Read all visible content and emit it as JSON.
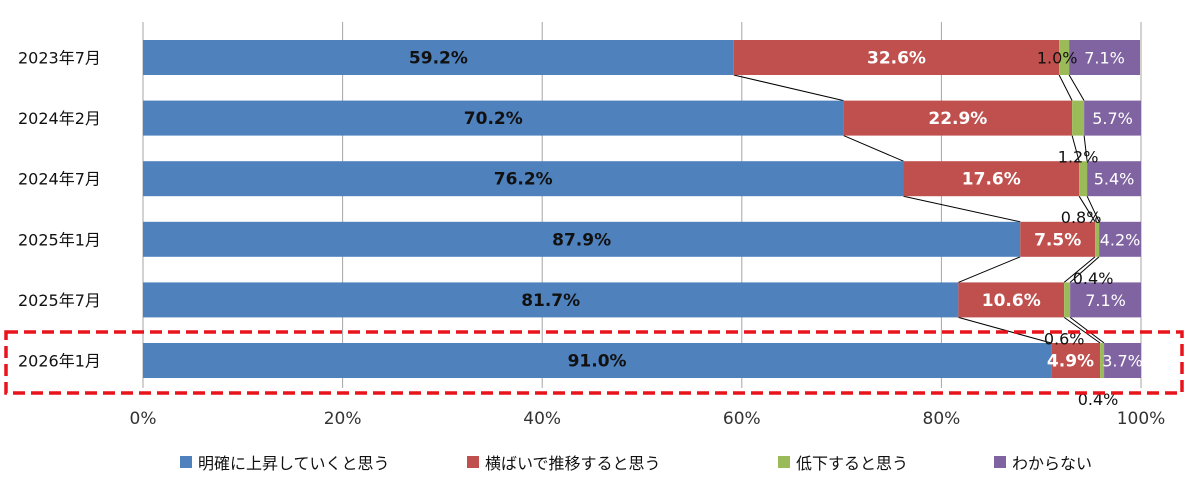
{
  "chart_data": {
    "type": "bar",
    "orientation": "horizontal",
    "stacked": true,
    "normalized": true,
    "categories": [
      "2023年7月",
      "2024年2月",
      "2024年7月",
      "2025年1月",
      "2025年7月",
      "2026年1月"
    ],
    "series": [
      {
        "name": "明確に上昇していくと思う",
        "color": "#4F81BD",
        "values": [
          59.2,
          70.2,
          76.2,
          87.9,
          81.7,
          91.0
        ]
      },
      {
        "name": "横ばいで推移すると思う",
        "color": "#C0504D",
        "values": [
          32.6,
          22.9,
          17.6,
          7.5,
          10.6,
          4.9
        ]
      },
      {
        "name": "低下すると思う",
        "color": "#9BBB59",
        "values": [
          1.0,
          1.2,
          0.8,
          0.4,
          0.6,
          0.4
        ]
      },
      {
        "name": "わからない",
        "color": "#8064A2",
        "values": [
          7.1,
          5.7,
          5.4,
          4.2,
          7.1,
          3.7
        ]
      }
    ],
    "data_labels": [
      [
        "59.2%",
        "32.6%",
        "1.0%",
        "7.1%"
      ],
      [
        "70.2%",
        "22.9%",
        "1.2%",
        "5.7%"
      ],
      [
        "76.2%",
        "17.6%",
        "0.8%",
        "5.4%"
      ],
      [
        "87.9%",
        "7.5%",
        "0.4%",
        "4.2%"
      ],
      [
        "81.7%",
        "10.6%",
        "0.6%",
        "7.1%"
      ],
      [
        "91.0%",
        "4.9%",
        "0.4%",
        "3.7%"
      ]
    ],
    "x_ticks": [
      "0%",
      "20%",
      "40%",
      "60%",
      "80%",
      "100%"
    ],
    "xlim": [
      0,
      100
    ],
    "grid": true,
    "series_lines": true,
    "legend_position": "bottom",
    "highlight_category": "2026年1月",
    "highlight_color": "#E8141B"
  }
}
